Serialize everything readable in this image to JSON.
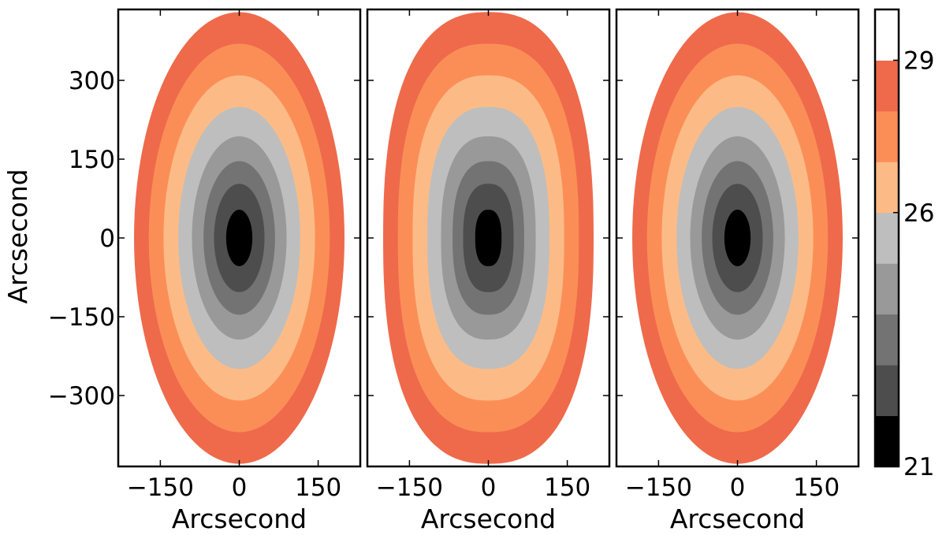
{
  "chart_data": {
    "type": "contour",
    "panel_count": 3,
    "x_axis_label": "Arcsecond",
    "y_axis_label": "Arcsecond",
    "xlim": [
      -230,
      230
    ],
    "ylim": [
      -435,
      435
    ],
    "x_ticks": [
      -150,
      0,
      150
    ],
    "x_tick_labels": [
      "−150",
      "0",
      "150"
    ],
    "y_ticks": [
      300,
      150,
      0,
      -150,
      -300
    ],
    "y_tick_labels": [
      "300",
      "150",
      "0",
      "−150",
      "−300"
    ],
    "outer_semi_axes_arcsec": {
      "a": 200,
      "b": 430
    },
    "panels": [
      {
        "name": "left",
        "shape": "ellipse"
      },
      {
        "name": "middle",
        "shape": "boxy"
      },
      {
        "name": "right",
        "shape": "ellipse"
      }
    ],
    "colorbar": {
      "range": [
        21,
        30
      ],
      "tick_values": [
        29,
        26,
        21
      ],
      "tick_labels": [
        "29",
        "26",
        "21"
      ],
      "level_colors": [
        "#000000",
        "#4d4d4d",
        "#737373",
        "#999999",
        "#bebebe",
        "#fcbb86",
        "#fb8e57",
        "#ee6a4b",
        "#ffffff"
      ]
    },
    "contour_levels": [
      {
        "scale": 1.0,
        "color": "#ee6a4b"
      },
      {
        "scale": 0.86,
        "color": "#fb8e57"
      },
      {
        "scale": 0.72,
        "color": "#fcbb86"
      },
      {
        "scale": 0.58,
        "color": "#bebebe"
      },
      {
        "scale": 0.45,
        "color": "#999999"
      },
      {
        "scale": 0.34,
        "color": "#737373"
      },
      {
        "scale": 0.24,
        "color": "#4d4d4d"
      },
      {
        "scale": 0.125,
        "color": "#000000"
      }
    ]
  }
}
